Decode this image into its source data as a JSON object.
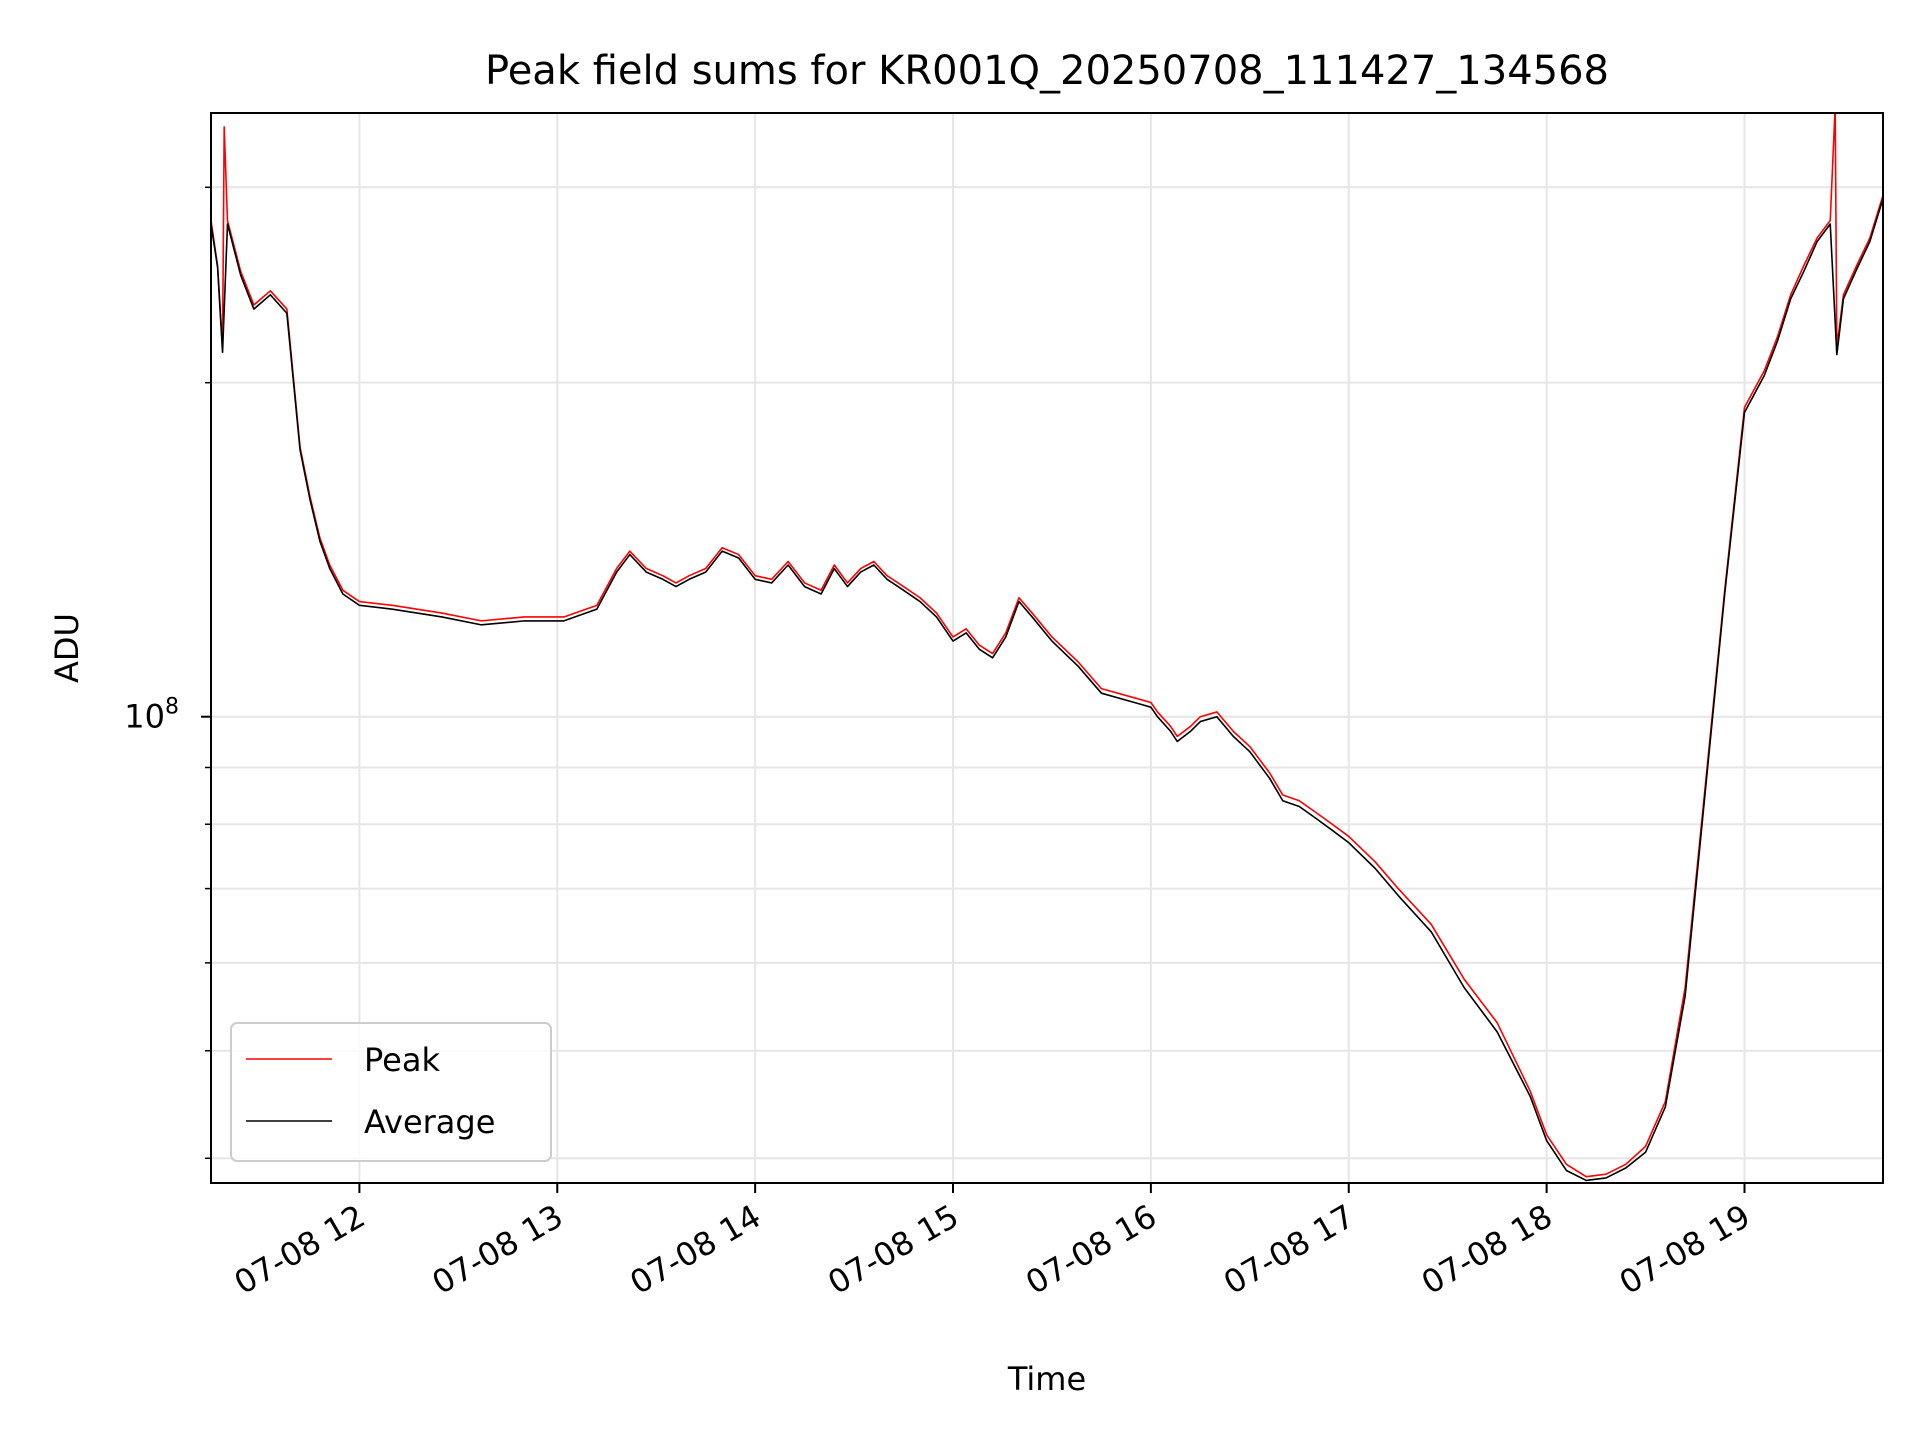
{
  "chart_data": {
    "type": "line",
    "title": "Peak field sums for KR001Q_20250708_111427_134568",
    "xlabel": "Time",
    "ylabel": "ADU",
    "x_axis": {
      "kind": "datetime",
      "min": "2025-07-08T11:15:00",
      "max": "2025-07-08T19:42:00",
      "ticks": [
        {
          "value": "2025-07-08T12:00:00",
          "label": "07-08 12"
        },
        {
          "value": "2025-07-08T13:00:00",
          "label": "07-08 13"
        },
        {
          "value": "2025-07-08T14:00:00",
          "label": "07-08 14"
        },
        {
          "value": "2025-07-08T15:00:00",
          "label": "07-08 15"
        },
        {
          "value": "2025-07-08T16:00:00",
          "label": "07-08 16"
        },
        {
          "value": "2025-07-08T17:00:00",
          "label": "07-08 17"
        },
        {
          "value": "2025-07-08T18:00:00",
          "label": "07-08 18"
        },
        {
          "value": "2025-07-08T19:00:00",
          "label": "07-08 19"
        }
      ]
    },
    "y_axis": {
      "scale": "log",
      "min": 38000000,
      "max": 350000000,
      "major_ticks": [
        {
          "value": 100000000,
          "base": "10",
          "exponent": "8"
        }
      ],
      "minor_ticks": [
        40000000,
        50000000,
        60000000,
        70000000,
        80000000,
        90000000,
        200000000,
        300000000
      ]
    },
    "grid": true,
    "legend": {
      "position": "lower-left",
      "entries": [
        "Peak",
        "Average"
      ]
    },
    "series": [
      {
        "name": "Peak",
        "color": "#ff0000",
        "x": [
          "2025-07-08T11:15:00",
          "2025-07-08T11:17:00",
          "2025-07-08T11:18:30",
          "2025-07-08T11:19:00",
          "2025-07-08T11:20:00",
          "2025-07-08T11:24:00",
          "2025-07-08T11:28:00",
          "2025-07-08T11:33:00",
          "2025-07-08T11:38:00",
          "2025-07-08T11:42:00",
          "2025-07-08T11:45:00",
          "2025-07-08T11:48:00",
          "2025-07-08T11:51:00",
          "2025-07-08T11:55:00",
          "2025-07-08T12:00:00",
          "2025-07-08T12:10:00",
          "2025-07-08T12:25:00",
          "2025-07-08T12:37:00",
          "2025-07-08T12:50:00",
          "2025-07-08T13:02:00",
          "2025-07-08T13:12:00",
          "2025-07-08T13:18:00",
          "2025-07-08T13:22:00",
          "2025-07-08T13:27:00",
          "2025-07-08T13:32:00",
          "2025-07-08T13:36:00",
          "2025-07-08T13:40:00",
          "2025-07-08T13:45:00",
          "2025-07-08T13:50:00",
          "2025-07-08T13:55:00",
          "2025-07-08T14:00:00",
          "2025-07-08T14:05:00",
          "2025-07-08T14:10:00",
          "2025-07-08T14:15:00",
          "2025-07-08T14:20:00",
          "2025-07-08T14:24:00",
          "2025-07-08T14:28:00",
          "2025-07-08T14:32:00",
          "2025-07-08T14:36:00",
          "2025-07-08T14:40:00",
          "2025-07-08T14:45:00",
          "2025-07-08T14:50:00",
          "2025-07-08T14:55:00",
          "2025-07-08T15:00:00",
          "2025-07-08T15:04:00",
          "2025-07-08T15:08:00",
          "2025-07-08T15:12:00",
          "2025-07-08T15:16:00",
          "2025-07-08T15:20:00",
          "2025-07-08T15:24:00",
          "2025-07-08T15:30:00",
          "2025-07-08T15:38:00",
          "2025-07-08T15:45:00",
          "2025-07-08T15:55:00",
          "2025-07-08T16:00:00",
          "2025-07-08T16:02:00",
          "2025-07-08T16:06:00",
          "2025-07-08T16:08:00",
          "2025-07-08T16:12:00",
          "2025-07-08T16:15:00",
          "2025-07-08T16:20:00",
          "2025-07-08T16:25:00",
          "2025-07-08T16:30:00",
          "2025-07-08T16:36:00",
          "2025-07-08T16:40:00",
          "2025-07-08T16:45:00",
          "2025-07-08T16:50:00",
          "2025-07-08T16:55:00",
          "2025-07-08T17:00:00",
          "2025-07-08T17:08:00",
          "2025-07-08T17:15:00",
          "2025-07-08T17:25:00",
          "2025-07-08T17:35:00",
          "2025-07-08T17:45:00",
          "2025-07-08T17:55:00",
          "2025-07-08T18:00:00",
          "2025-07-08T18:06:00",
          "2025-07-08T18:12:00",
          "2025-07-08T18:18:00",
          "2025-07-08T18:24:00",
          "2025-07-08T18:30:00",
          "2025-07-08T18:36:00",
          "2025-07-08T18:42:00",
          "2025-07-08T18:48:00",
          "2025-07-08T18:54:00",
          "2025-07-08T19:00:00",
          "2025-07-08T19:06:00",
          "2025-07-08T19:10:00",
          "2025-07-08T19:14:00",
          "2025-07-08T19:18:00",
          "2025-07-08T19:22:00",
          "2025-07-08T19:26:00",
          "2025-07-08T19:27:30",
          "2025-07-08T19:28:00",
          "2025-07-08T19:30:00",
          "2025-07-08T19:34:00",
          "2025-07-08T19:38:00",
          "2025-07-08T19:42:00"
        ],
        "y": [
          280000000,
          255000000,
          215000000,
          340000000,
          280000000,
          252000000,
          235000000,
          242000000,
          233000000,
          175000000,
          158000000,
          145000000,
          137000000,
          130000000,
          127000000,
          126000000,
          124000000,
          122000000,
          123000000,
          123000000,
          126000000,
          136000000,
          141000000,
          136000000,
          134000000,
          132000000,
          134000000,
          136000000,
          142000000,
          140000000,
          134000000,
          133000000,
          138000000,
          132000000,
          130000000,
          137000000,
          132000000,
          136000000,
          138000000,
          134000000,
          131000000,
          128000000,
          124000000,
          118000000,
          120000000,
          116000000,
          114000000,
          119000000,
          128000000,
          124000000,
          118000000,
          112000000,
          106000000,
          104000000,
          103000000,
          101000000,
          98000000,
          96000000,
          98000000,
          100000000,
          101000000,
          97000000,
          94000000,
          89000000,
          85000000,
          84000000,
          82000000,
          80000000,
          78000000,
          74000000,
          70000000,
          65000000,
          58000000,
          53000000,
          46000000,
          42000000,
          39500000,
          38500000,
          38700000,
          39500000,
          41000000,
          45000000,
          57000000,
          86000000,
          130000000,
          190000000,
          205000000,
          220000000,
          240000000,
          255000000,
          270000000,
          280000000,
          355000000,
          215000000,
          240000000,
          255000000,
          270000000,
          295000000
        ]
      },
      {
        "name": "Average",
        "color": "#000000",
        "x": [
          "2025-07-08T11:15:00",
          "2025-07-08T11:17:00",
          "2025-07-08T11:18:30",
          "2025-07-08T11:20:00",
          "2025-07-08T11:24:00",
          "2025-07-08T11:28:00",
          "2025-07-08T11:33:00",
          "2025-07-08T11:38:00",
          "2025-07-08T11:42:00",
          "2025-07-08T11:45:00",
          "2025-07-08T11:48:00",
          "2025-07-08T11:51:00",
          "2025-07-08T11:55:00",
          "2025-07-08T12:00:00",
          "2025-07-08T12:10:00",
          "2025-07-08T12:25:00",
          "2025-07-08T12:37:00",
          "2025-07-08T12:50:00",
          "2025-07-08T13:02:00",
          "2025-07-08T13:12:00",
          "2025-07-08T13:18:00",
          "2025-07-08T13:22:00",
          "2025-07-08T13:27:00",
          "2025-07-08T13:32:00",
          "2025-07-08T13:36:00",
          "2025-07-08T13:40:00",
          "2025-07-08T13:45:00",
          "2025-07-08T13:50:00",
          "2025-07-08T13:55:00",
          "2025-07-08T14:00:00",
          "2025-07-08T14:05:00",
          "2025-07-08T14:10:00",
          "2025-07-08T14:15:00",
          "2025-07-08T14:20:00",
          "2025-07-08T14:24:00",
          "2025-07-08T14:28:00",
          "2025-07-08T14:32:00",
          "2025-07-08T14:36:00",
          "2025-07-08T14:40:00",
          "2025-07-08T14:45:00",
          "2025-07-08T14:50:00",
          "2025-07-08T14:55:00",
          "2025-07-08T15:00:00",
          "2025-07-08T15:04:00",
          "2025-07-08T15:08:00",
          "2025-07-08T15:12:00",
          "2025-07-08T15:16:00",
          "2025-07-08T15:20:00",
          "2025-07-08T15:24:00",
          "2025-07-08T15:30:00",
          "2025-07-08T15:38:00",
          "2025-07-08T15:45:00",
          "2025-07-08T15:55:00",
          "2025-07-08T16:00:00",
          "2025-07-08T16:02:00",
          "2025-07-08T16:06:00",
          "2025-07-08T16:08:00",
          "2025-07-08T16:12:00",
          "2025-07-08T16:15:00",
          "2025-07-08T16:20:00",
          "2025-07-08T16:25:00",
          "2025-07-08T16:30:00",
          "2025-07-08T16:36:00",
          "2025-07-08T16:40:00",
          "2025-07-08T16:45:00",
          "2025-07-08T16:50:00",
          "2025-07-08T16:55:00",
          "2025-07-08T17:00:00",
          "2025-07-08T17:08:00",
          "2025-07-08T17:15:00",
          "2025-07-08T17:25:00",
          "2025-07-08T17:35:00",
          "2025-07-08T17:45:00",
          "2025-07-08T17:55:00",
          "2025-07-08T18:00:00",
          "2025-07-08T18:06:00",
          "2025-07-08T18:12:00",
          "2025-07-08T18:18:00",
          "2025-07-08T18:24:00",
          "2025-07-08T18:30:00",
          "2025-07-08T18:36:00",
          "2025-07-08T18:42:00",
          "2025-07-08T18:48:00",
          "2025-07-08T18:54:00",
          "2025-07-08T19:00:00",
          "2025-07-08T19:06:00",
          "2025-07-08T19:10:00",
          "2025-07-08T19:14:00",
          "2025-07-08T19:18:00",
          "2025-07-08T19:22:00",
          "2025-07-08T19:26:00",
          "2025-07-08T19:28:00",
          "2025-07-08T19:30:00",
          "2025-07-08T19:34:00",
          "2025-07-08T19:38:00",
          "2025-07-08T19:42:00"
        ],
        "y": [
          278000000,
          254000000,
          213000000,
          278000000,
          250000000,
          233000000,
          240000000,
          231000000,
          174000000,
          157000000,
          144000000,
          136000000,
          129000000,
          126000000,
          125000000,
          123000000,
          121000000,
          122000000,
          122000000,
          125000000,
          135000000,
          140000000,
          135000000,
          133000000,
          131000000,
          133000000,
          135000000,
          141000000,
          139000000,
          133000000,
          132000000,
          137000000,
          131000000,
          129000000,
          136000000,
          131000000,
          135000000,
          137000000,
          133000000,
          130000000,
          127000000,
          123000000,
          117000000,
          119000000,
          115000000,
          113000000,
          118000000,
          127000000,
          123000000,
          117000000,
          111000000,
          105000000,
          103000000,
          102000000,
          100000000,
          97000000,
          95000000,
          97000000,
          99000000,
          100000000,
          96000000,
          93000000,
          88000000,
          84000000,
          83000000,
          81000000,
          79000000,
          77000000,
          73000000,
          69000000,
          64000000,
          57000000,
          52000000,
          45500000,
          41500000,
          39000000,
          38200000,
          38400000,
          39200000,
          40500000,
          44500000,
          56000000,
          85000000,
          129000000,
          188000000,
          203000000,
          218000000,
          238000000,
          252000000,
          268000000,
          278000000,
          212000000,
          238000000,
          253000000,
          268000000,
          293000000
        ]
      }
    ]
  }
}
